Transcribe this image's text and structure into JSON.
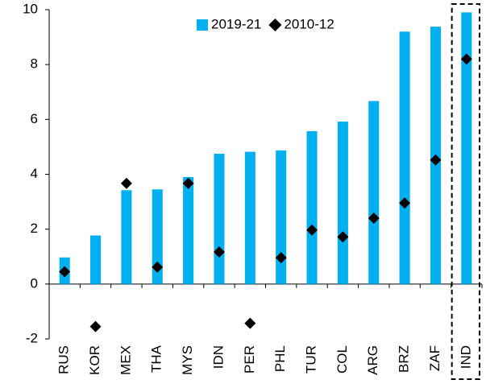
{
  "chart_data": {
    "type": "bar",
    "categories": [
      "RUS",
      "KOR",
      "MEX",
      "THA",
      "MYS",
      "IDN",
      "PER",
      "PHL",
      "TUR",
      "COL",
      "ARG",
      "BRZ",
      "ZAF",
      "IND"
    ],
    "series": [
      {
        "name": "2019-21",
        "type": "bar",
        "color": "#00b0f0",
        "values": [
          0.97,
          1.77,
          3.42,
          3.45,
          3.9,
          4.75,
          4.82,
          4.87,
          5.57,
          5.92,
          6.67,
          9.2,
          9.38,
          9.9
        ]
      },
      {
        "name": "2010-12",
        "type": "scatter",
        "marker": "diamond",
        "color": "#000000",
        "values": [
          0.45,
          -1.55,
          3.67,
          0.62,
          3.67,
          1.17,
          -1.43,
          0.96,
          1.97,
          1.72,
          2.4,
          2.95,
          4.52,
          8.2
        ]
      }
    ],
    "ylim": [
      -2,
      10
    ],
    "yticks": [
      -2,
      0,
      2,
      4,
      6,
      8,
      10
    ],
    "legend": "top",
    "highlight": "IND"
  }
}
